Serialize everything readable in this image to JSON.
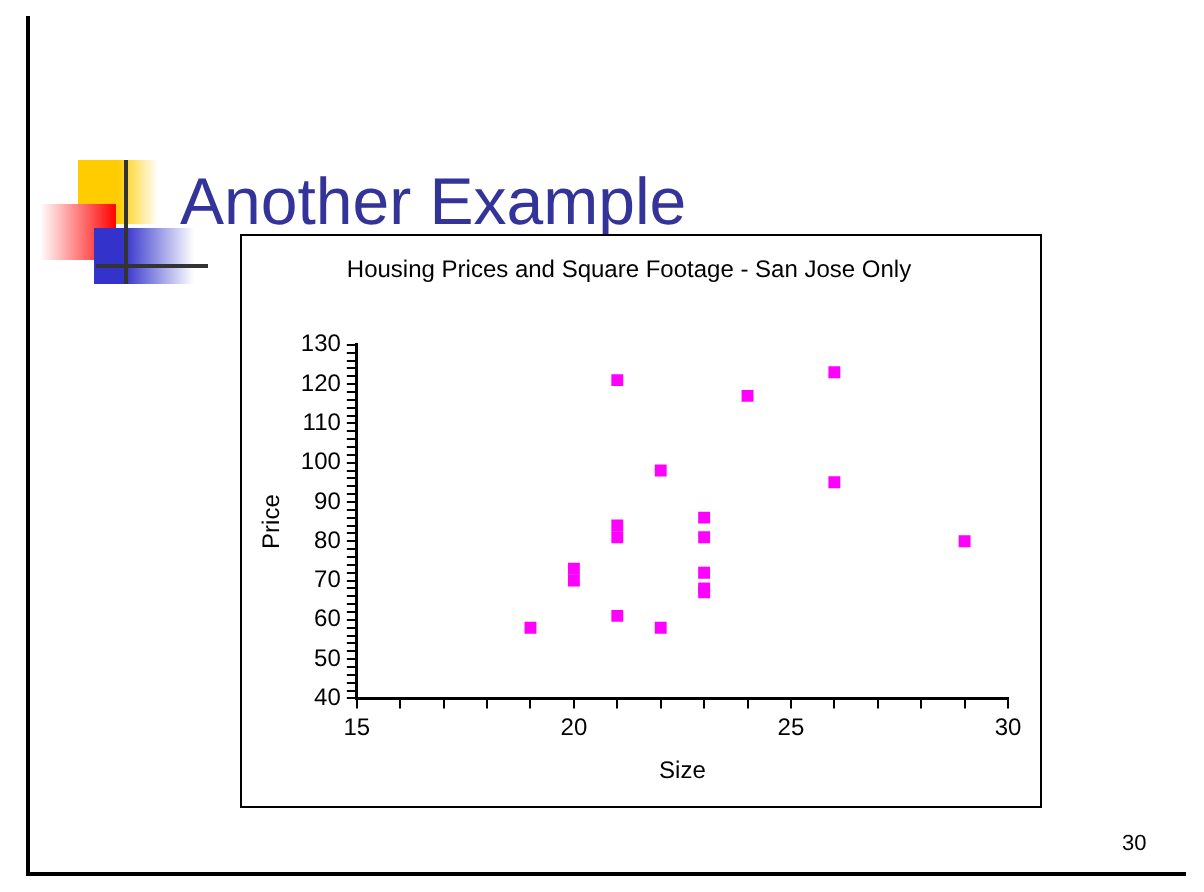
{
  "chart_data": {
    "type": "scatter",
    "title": "Housing Prices and Square Footage - San Jose Only",
    "xlabel": "Size",
    "ylabel": "Price",
    "annotations": [
      "Another Example",
      "30"
    ],
    "x": [
      19,
      20,
      20,
      21,
      21,
      21,
      21,
      22,
      22,
      23,
      23,
      23,
      23,
      23,
      24,
      26,
      26,
      29
    ],
    "series": [
      {
        "color": "#ff00ff",
        "values": [
          58,
          73,
          70,
          121,
          84,
          81,
          61,
          98,
          58,
          86,
          81,
          72,
          68,
          67,
          117,
          123,
          95,
          80
        ]
      }
    ],
    "marker": "square",
    "grid": false,
    "legend": false,
    "xlim": [
      15,
      30
    ],
    "xticks": [
      15,
      {
        "value": 16,
        "label": null
      },
      {
        "value": 17,
        "label": null
      },
      {
        "value": 18,
        "label": null
      },
      {
        "value": 19,
        "label": null
      },
      20,
      {
        "value": 21,
        "label": null
      },
      {
        "value": 22,
        "label": null
      },
      {
        "value": 23,
        "label": null
      },
      {
        "value": 24,
        "label": null
      },
      25,
      {
        "value": 26,
        "label": null
      },
      {
        "value": 27,
        "label": null
      },
      {
        "value": 28,
        "label": null
      },
      {
        "value": 29,
        "label": null
      },
      30
    ],
    "ylim": [
      40,
      130
    ],
    "yticks": [
      40,
      {
        "value": 42,
        "label": null
      },
      {
        "value": 44,
        "label": null
      },
      {
        "value": 46,
        "label": null
      },
      {
        "value": 48,
        "label": null
      },
      50,
      {
        "value": 52,
        "label": null
      },
      {
        "value": 54,
        "label": null
      },
      {
        "value": 56,
        "label": null
      },
      {
        "value": 58,
        "label": null
      },
      60,
      {
        "value": 62,
        "label": null
      },
      {
        "value": 64,
        "label": null
      },
      {
        "value": 66,
        "label": null
      },
      {
        "value": 68,
        "label": null
      },
      70,
      {
        "value": 72,
        "label": null
      },
      {
        "value": 74,
        "label": null
      },
      {
        "value": 76,
        "label": null
      },
      {
        "value": 78,
        "label": null
      },
      80,
      {
        "value": 82,
        "label": null
      },
      {
        "value": 84,
        "label": null
      },
      {
        "value": 86,
        "label": null
      },
      {
        "value": 88,
        "label": null
      },
      90,
      {
        "value": 92,
        "label": null
      },
      {
        "value": 94,
        "label": null
      },
      {
        "value": 96,
        "label": null
      },
      {
        "value": 98,
        "label": null
      },
      100,
      {
        "value": 102,
        "label": null
      },
      {
        "value": 104,
        "label": null
      },
      {
        "value": 106,
        "label": null
      },
      {
        "value": 108,
        "label": null
      },
      110,
      {
        "value": 112,
        "label": null
      },
      {
        "value": 114,
        "label": null
      },
      {
        "value": 116,
        "label": null
      },
      {
        "value": 118,
        "label": null
      },
      120,
      {
        "value": 122,
        "label": null
      },
      {
        "value": 124,
        "label": null
      },
      {
        "value": 126,
        "label": null
      },
      {
        "value": 128,
        "label": null
      },
      130
    ]
  }
}
